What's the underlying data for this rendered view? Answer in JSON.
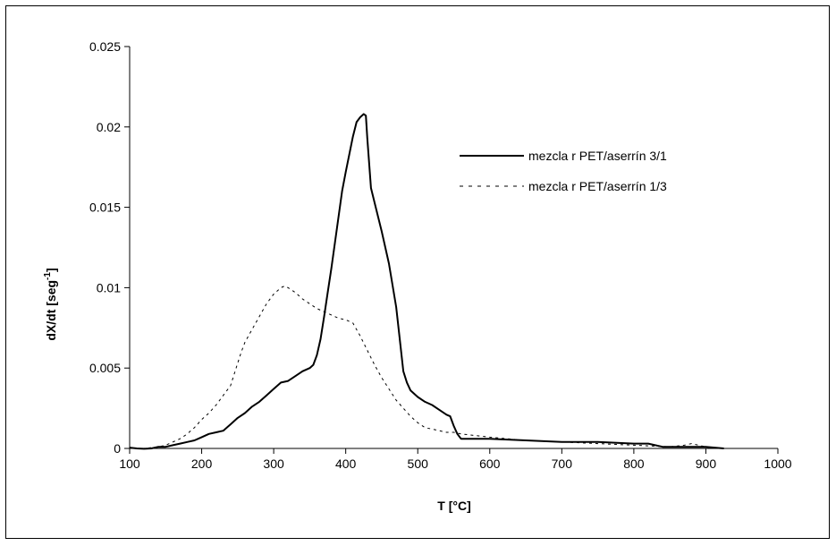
{
  "chart_data": {
    "type": "line",
    "title": "",
    "xlabel": "T [°C]",
    "ylabel": "dX/dt [seg",
    "ylabel_sup": "-1",
    "ylabel_end": "]",
    "xlim": [
      100,
      1000
    ],
    "ylim": [
      0,
      0.025
    ],
    "x_ticks": [
      100,
      200,
      300,
      400,
      500,
      600,
      700,
      800,
      900,
      1000
    ],
    "x_tick_labels": [
      "100",
      "200",
      "300",
      "400",
      "500",
      "600",
      "700",
      "800",
      "900",
      "1000"
    ],
    "y_ticks": [
      0,
      0.005,
      0.01,
      0.015,
      0.02,
      0.025
    ],
    "y_tick_labels": [
      "0",
      "0.005",
      "0.01",
      "0.015",
      "0.02",
      "0.025"
    ],
    "grid": false,
    "legend_position": "top-right",
    "series": [
      {
        "name": "mezcla r PET/aserrín 3/1",
        "line_style": "solid",
        "color": "#000000",
        "x": [
          100,
          110,
          120,
          130,
          140,
          150,
          160,
          170,
          180,
          190,
          200,
          210,
          220,
          230,
          240,
          250,
          260,
          270,
          280,
          290,
          300,
          310,
          320,
          330,
          340,
          350,
          355,
          360,
          365,
          370,
          375,
          380,
          385,
          390,
          395,
          400,
          405,
          410,
          415,
          420,
          425,
          428,
          430,
          435,
          440,
          450,
          460,
          470,
          475,
          480,
          485,
          490,
          500,
          510,
          520,
          530,
          540,
          545,
          550,
          555,
          560,
          570,
          600,
          650,
          700,
          750,
          800,
          820,
          840,
          860,
          880,
          900,
          925
        ],
        "y": [
          5e-05,
          0.0,
          -2e-05,
          0.0,
          0.0001,
          0.0001,
          0.0002,
          0.0003,
          0.0004,
          0.0005,
          0.0007,
          0.0009,
          0.001,
          0.0011,
          0.0015,
          0.0019,
          0.0022,
          0.0026,
          0.0029,
          0.0033,
          0.0037,
          0.0041,
          0.0042,
          0.0045,
          0.0048,
          0.005,
          0.0052,
          0.0058,
          0.0068,
          0.0082,
          0.0097,
          0.0112,
          0.0128,
          0.0144,
          0.016,
          0.0172,
          0.0183,
          0.0194,
          0.0203,
          0.0206,
          0.0208,
          0.0207,
          0.0193,
          0.0162,
          0.0153,
          0.0135,
          0.0115,
          0.0088,
          0.0068,
          0.0048,
          0.0041,
          0.0036,
          0.0032,
          0.0029,
          0.0027,
          0.0024,
          0.0021,
          0.002,
          0.0014,
          0.0009,
          0.0006,
          0.0006,
          0.0006,
          0.0005,
          0.0004,
          0.0004,
          0.0003,
          0.0003,
          0.0001,
          0.0001,
          0.0001,
          0.0001,
          0.0
        ]
      },
      {
        "name": "mezcla r PET/aserrín 1/3",
        "line_style": "dashed",
        "color": "#000000",
        "x": [
          100,
          110,
          120,
          130,
          140,
          150,
          160,
          170,
          180,
          190,
          200,
          210,
          220,
          230,
          240,
          245,
          250,
          255,
          260,
          270,
          280,
          290,
          300,
          310,
          315,
          320,
          330,
          340,
          350,
          360,
          370,
          380,
          390,
          400,
          410,
          420,
          430,
          440,
          450,
          460,
          470,
          480,
          490,
          500,
          510,
          520,
          530,
          540,
          550,
          560,
          580,
          600,
          650,
          700,
          750,
          800,
          850,
          870,
          880,
          900,
          925
        ],
        "y": [
          0.0,
          0.0,
          0.0,
          5e-05,
          0.0001,
          0.0002,
          0.0004,
          0.0006,
          0.0009,
          0.0013,
          0.0018,
          0.0022,
          0.0027,
          0.0033,
          0.0039,
          0.0046,
          0.0053,
          0.006,
          0.0066,
          0.0074,
          0.0082,
          0.009,
          0.0096,
          0.01,
          0.0101,
          0.01,
          0.0097,
          0.0093,
          0.009,
          0.0087,
          0.0085,
          0.0083,
          0.0081,
          0.008,
          0.0078,
          0.007,
          0.0061,
          0.0052,
          0.0044,
          0.0037,
          0.003,
          0.0025,
          0.002,
          0.0016,
          0.0013,
          0.0012,
          0.0011,
          0.001,
          0.001,
          0.0009,
          0.0008,
          0.0007,
          0.0005,
          0.0004,
          0.0003,
          0.0002,
          0.0001,
          0.0002,
          0.0003,
          0.0001,
          0.0
        ]
      }
    ]
  }
}
